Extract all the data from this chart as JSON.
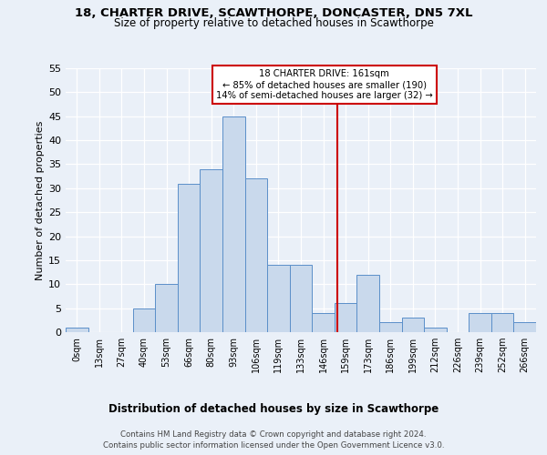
{
  "title1": "18, CHARTER DRIVE, SCAWTHORPE, DONCASTER, DN5 7XL",
  "title2": "Size of property relative to detached houses in Scawthorpe",
  "xlabel": "Distribution of detached houses by size in Scawthorpe",
  "ylabel": "Number of detached properties",
  "footnote1": "Contains HM Land Registry data © Crown copyright and database right 2024.",
  "footnote2": "Contains public sector information licensed under the Open Government Licence v3.0.",
  "bin_labels": [
    "0sqm",
    "13sqm",
    "27sqm",
    "40sqm",
    "53sqm",
    "66sqm",
    "80sqm",
    "93sqm",
    "106sqm",
    "119sqm",
    "133sqm",
    "146sqm",
    "159sqm",
    "173sqm",
    "186sqm",
    "199sqm",
    "212sqm",
    "226sqm",
    "239sqm",
    "252sqm",
    "266sqm"
  ],
  "bar_values": [
    1,
    0,
    0,
    5,
    10,
    31,
    34,
    45,
    32,
    14,
    14,
    4,
    6,
    12,
    2,
    3,
    1,
    0,
    4,
    4,
    2
  ],
  "bar_color": "#c9d9ec",
  "bar_edge_color": "#5b8fc9",
  "annotation_title": "18 CHARTER DRIVE: 161sqm",
  "annotation_line1": "← 85% of detached houses are smaller (190)",
  "annotation_line2": "14% of semi-detached houses are larger (32) →",
  "annotation_box_color": "#ffffff",
  "annotation_box_edge": "#cc0000",
  "vline_color": "#cc0000",
  "bg_color": "#eaf0f8",
  "ylim": [
    0,
    55
  ],
  "yticks": [
    0,
    5,
    10,
    15,
    20,
    25,
    30,
    35,
    40,
    45,
    50,
    55
  ],
  "property_sqm": 161,
  "bin_left_edges": [
    0,
    13,
    27,
    40,
    53,
    66,
    80,
    93,
    106,
    119,
    133,
    146,
    159,
    173,
    186,
    199,
    212,
    226,
    239,
    252,
    266
  ]
}
